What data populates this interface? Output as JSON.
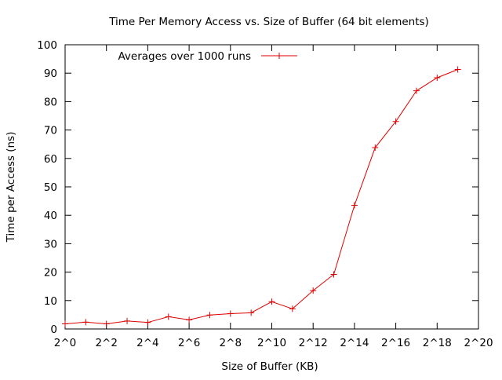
{
  "chart_data": {
    "type": "line",
    "title": "Time Per Memory Access vs. Size of Buffer (64 bit elements)",
    "xlabel": "Size of Buffer (KB)",
    "ylabel": "Time per Access (ns)",
    "x_scale": "log2",
    "xlim": [
      1,
      1048576
    ],
    "ylim": [
      0,
      100
    ],
    "grid": false,
    "legend_position": "top-left",
    "x_ticks": [
      {
        "value": 1,
        "label": "2^0"
      },
      {
        "value": 4,
        "label": "2^2"
      },
      {
        "value": 16,
        "label": "2^4"
      },
      {
        "value": 64,
        "label": "2^6"
      },
      {
        "value": 256,
        "label": "2^8"
      },
      {
        "value": 1024,
        "label": "2^10"
      },
      {
        "value": 4096,
        "label": "2^12"
      },
      {
        "value": 16384,
        "label": "2^14"
      },
      {
        "value": 65536,
        "label": "2^16"
      },
      {
        "value": 262144,
        "label": "2^18"
      },
      {
        "value": 1048576,
        "label": "2^20"
      }
    ],
    "y_ticks": [
      0,
      10,
      20,
      30,
      40,
      50,
      60,
      70,
      80,
      90,
      100
    ],
    "series": [
      {
        "name": "Averages over 1000 runs",
        "color": "#e00000",
        "marker": "plus",
        "x": [
          1,
          2,
          4,
          8,
          16,
          32,
          64,
          128,
          256,
          512,
          1024,
          2048,
          4096,
          8192,
          16384,
          32768,
          65536,
          131072,
          262144,
          524288
        ],
        "y": [
          1.8,
          2.4,
          1.8,
          2.8,
          2.3,
          4.3,
          3.2,
          4.9,
          5.4,
          5.7,
          9.6,
          7.1,
          13.5,
          19.2,
          43.5,
          63.8,
          73.0,
          83.8,
          88.4,
          91.3
        ]
      }
    ]
  }
}
